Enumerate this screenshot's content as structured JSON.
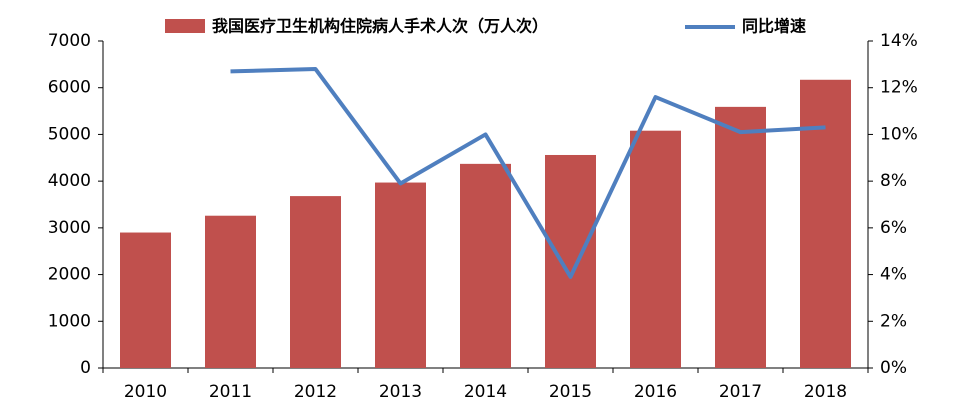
{
  "chart_data": {
    "type": "bar-line",
    "categories": [
      "2010",
      "2011",
      "2012",
      "2013",
      "2014",
      "2015",
      "2016",
      "2017",
      "2018"
    ],
    "series": [
      {
        "name": "我国医疗卫生机构住院病人手术人次（万人次）",
        "type": "bar",
        "color": "#c0504d",
        "values": [
          2900,
          3260,
          3680,
          3970,
          4370,
          4560,
          5080,
          5590,
          6170
        ]
      },
      {
        "name": "同比增速",
        "type": "line",
        "axis": "y2",
        "color": "#4f7fbf",
        "values": [
          null,
          12.7,
          12.8,
          7.9,
          10.0,
          3.9,
          11.6,
          10.1,
          10.3
        ]
      }
    ],
    "ylim": [
      0,
      7000
    ],
    "yticks": [
      0,
      1000,
      2000,
      3000,
      4000,
      5000,
      6000,
      7000
    ],
    "y2lim": [
      0,
      14
    ],
    "y2ticks": [
      {
        "value": 0,
        "label": "0%"
      },
      {
        "value": 2,
        "label": "2%"
      },
      {
        "value": 4,
        "label": "4%"
      },
      {
        "value": 6,
        "label": "6%"
      },
      {
        "value": 8,
        "label": "8%"
      },
      {
        "value": 10,
        "label": "10%"
      },
      {
        "value": 12,
        "label": "12%"
      },
      {
        "value": 14,
        "label": "14%"
      }
    ],
    "grid": false,
    "legend": "top"
  }
}
